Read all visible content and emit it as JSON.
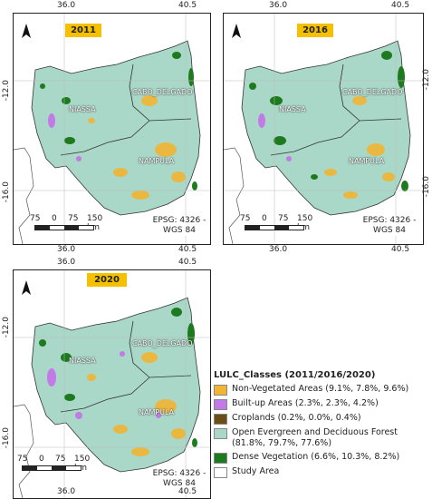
{
  "panels": [
    {
      "year": "2011",
      "lat_labels": [
        "-12.0",
        "-16.0"
      ],
      "lon_top": [
        "36.0",
        "40.5"
      ],
      "lon_bottom": [
        "36.0",
        "40.5"
      ],
      "regions": [
        "NIASSA",
        "CABO_DELGADO",
        "NAMPULA"
      ],
      "epsg": "EPSG: 4326 -",
      "epsg2": "WGS 84",
      "scale": [
        "75",
        "0",
        "75",
        "150 km"
      ]
    },
    {
      "year": "2016",
      "lat_labels": [
        "-12.0",
        "-16.0"
      ],
      "lon_top": [
        "36.0",
        "40.5"
      ],
      "lon_bottom": [
        "36.0",
        "40.5"
      ],
      "regions": [
        "NIASSA",
        "CABO_DELGADO",
        "NAMPULA"
      ],
      "epsg": "EPSG: 4326 -",
      "epsg2": "WGS 84",
      "scale": [
        "75",
        "0",
        "75",
        "150 km"
      ]
    },
    {
      "year": "2020",
      "lat_labels": [
        "-12.0",
        "-16.0"
      ],
      "lon_top": [
        "36.0",
        "40.5"
      ],
      "lon_bottom": [
        "36.0",
        "40.5"
      ],
      "regions": [
        "NIASSA",
        "CABO_DELGADO",
        "NAMPULA"
      ],
      "epsg": "EPSG: 4326 -",
      "epsg2": "WGS 84",
      "scale": [
        "75",
        "0",
        "75",
        "150 km"
      ]
    }
  ],
  "legend": {
    "title": "LULC_Classes (2011/2016/2020)",
    "items": [
      {
        "label": "Non-Vegetated Areas (9.1%, 7.8%, 9.6%)",
        "color": "#f2b533"
      },
      {
        "label": "Built-up Areas (2.3%, 2.3%, 4.2%)",
        "color": "#c27be6"
      },
      {
        "label": "Croplands (0.2%, 0.0%, 0.4%)",
        "color": "#6b4e16"
      },
      {
        "label": "Open Evergreen and Deciduous Forest (81.8%, 79.7%, 77.6%)",
        "color": "#a9d8c8"
      },
      {
        "label": "Dense Vegetation (6.6%, 10.3%, 8.2%)",
        "color": "#1e7a1e"
      },
      {
        "label": "Study Area",
        "color": "#ffffff"
      }
    ]
  }
}
